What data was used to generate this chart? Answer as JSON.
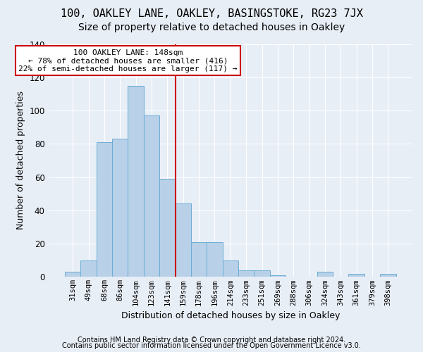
{
  "title1": "100, OAKLEY LANE, OAKLEY, BASINGSTOKE, RG23 7JX",
  "title2": "Size of property relative to detached houses in Oakley",
  "xlabel": "Distribution of detached houses by size in Oakley",
  "ylabel": "Number of detached properties",
  "footnote1": "Contains HM Land Registry data © Crown copyright and database right 2024.",
  "footnote2": "Contains public sector information licensed under the Open Government Licence v3.0.",
  "annotation_line1": "100 OAKLEY LANE: 148sqm",
  "annotation_line2": "← 78% of detached houses are smaller (416)",
  "annotation_line3": "22% of semi-detached houses are larger (117) →",
  "bar_labels": [
    "31sqm",
    "49sqm",
    "68sqm",
    "86sqm",
    "104sqm",
    "123sqm",
    "141sqm",
    "159sqm",
    "178sqm",
    "196sqm",
    "214sqm",
    "233sqm",
    "251sqm",
    "269sqm",
    "288sqm",
    "306sqm",
    "324sqm",
    "343sqm",
    "361sqm",
    "379sqm",
    "398sqm"
  ],
  "bar_values": [
    3,
    10,
    81,
    83,
    115,
    97,
    59,
    44,
    21,
    21,
    10,
    4,
    4,
    1,
    0,
    0,
    3,
    0,
    2,
    0,
    2
  ],
  "bar_color": "#b8d0e8",
  "bar_edge_color": "#6aaed6",
  "vline_x_idx": 6,
  "vline_color": "#cc0000",
  "background_color": "#e8eef6",
  "plot_bg_color": "#e8eef6",
  "ylim": [
    0,
    140
  ],
  "yticks": [
    0,
    20,
    40,
    60,
    80,
    100,
    120,
    140
  ],
  "grid_color": "#ffffff",
  "annotation_box_edge": "#cc0000",
  "title1_fontsize": 11,
  "title2_fontsize": 10,
  "tick_fontsize": 7.5,
  "ylabel_fontsize": 9,
  "xlabel_fontsize": 9,
  "footnote_fontsize": 7,
  "annotation_fontsize": 8
}
